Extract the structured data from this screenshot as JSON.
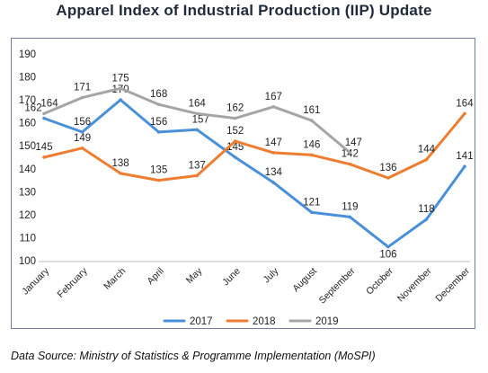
{
  "title": "Apparel Index of Industrial Production (IIP) Update",
  "source": "Data Source: Ministry of Statistics & Programme Implementation (MoSPI)",
  "chart_data": {
    "type": "line",
    "categories": [
      "January",
      "February",
      "March",
      "April",
      "May",
      "June",
      "July",
      "August",
      "September",
      "October",
      "November",
      "December"
    ],
    "ylim": [
      100,
      190
    ],
    "yticks": [
      100,
      110,
      120,
      130,
      140,
      150,
      160,
      170,
      180,
      190
    ],
    "grid": false,
    "legend_placement": "bottom",
    "series": [
      {
        "name": "2017",
        "color": "#4a90d9",
        "values": [
          162,
          156,
          170,
          156,
          157,
          145,
          134,
          121,
          119,
          106,
          118,
          141
        ]
      },
      {
        "name": "2018",
        "color": "#ed7d31",
        "values": [
          145,
          149,
          138,
          135,
          137,
          152,
          147,
          146,
          142,
          136,
          144,
          164
        ]
      },
      {
        "name": "2019",
        "color": "#a5a5a5",
        "values": [
          164,
          171,
          175,
          168,
          164,
          162,
          167,
          161,
          147,
          null,
          null,
          null
        ]
      }
    ]
  }
}
